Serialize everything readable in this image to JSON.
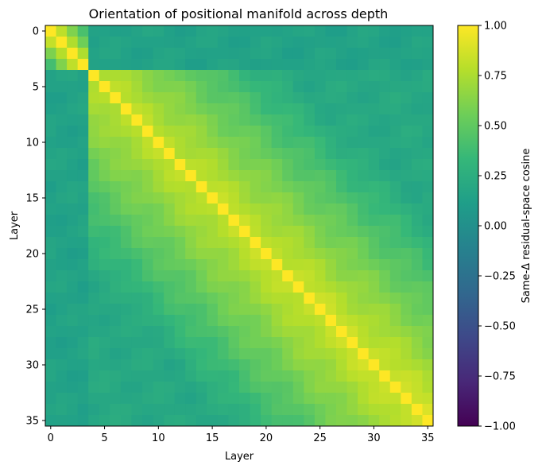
{
  "chart_data": {
    "type": "heatmap",
    "title": "Orientation of positional manifold across depth",
    "xlabel": "Layer",
    "ylabel": "Layer",
    "n": 36,
    "xticks": [
      0,
      5,
      10,
      15,
      20,
      25,
      30,
      35
    ],
    "yticks": [
      0,
      5,
      10,
      15,
      20,
      25,
      30,
      35
    ],
    "colorbar": {
      "label": "Same-Δ residual-space cosine",
      "min": -1.0,
      "max": 1.0,
      "ticks": [
        1.0,
        0.75,
        0.5,
        0.25,
        0.0,
        -0.25,
        -0.5,
        -0.75,
        -1.0
      ],
      "tick_labels": [
        "1.00",
        "0.75",
        "0.50",
        "0.25",
        "0.00",
        "−0.25",
        "−0.50",
        "−0.75",
        "−1.00"
      ],
      "colormap": "viridis"
    },
    "diagonal_value": 1.0,
    "approx_values": {
      "early_block_layers": [
        0,
        1,
        2,
        3
      ],
      "early_block_offdiagonal": 0.3,
      "early_to_late_cosine": 0.15,
      "main_band_start_layer": 4,
      "main_band_adjacent": 0.78,
      "main_band_decay_per_layer": 0.035,
      "main_band_floor": 0.2
    },
    "colors": {
      "viridis": [
        "#440154",
        "#482878",
        "#3e4989",
        "#31688e",
        "#26828e",
        "#1f9e89",
        "#35b779",
        "#6ece58",
        "#b5de2b",
        "#fde725"
      ]
    }
  }
}
